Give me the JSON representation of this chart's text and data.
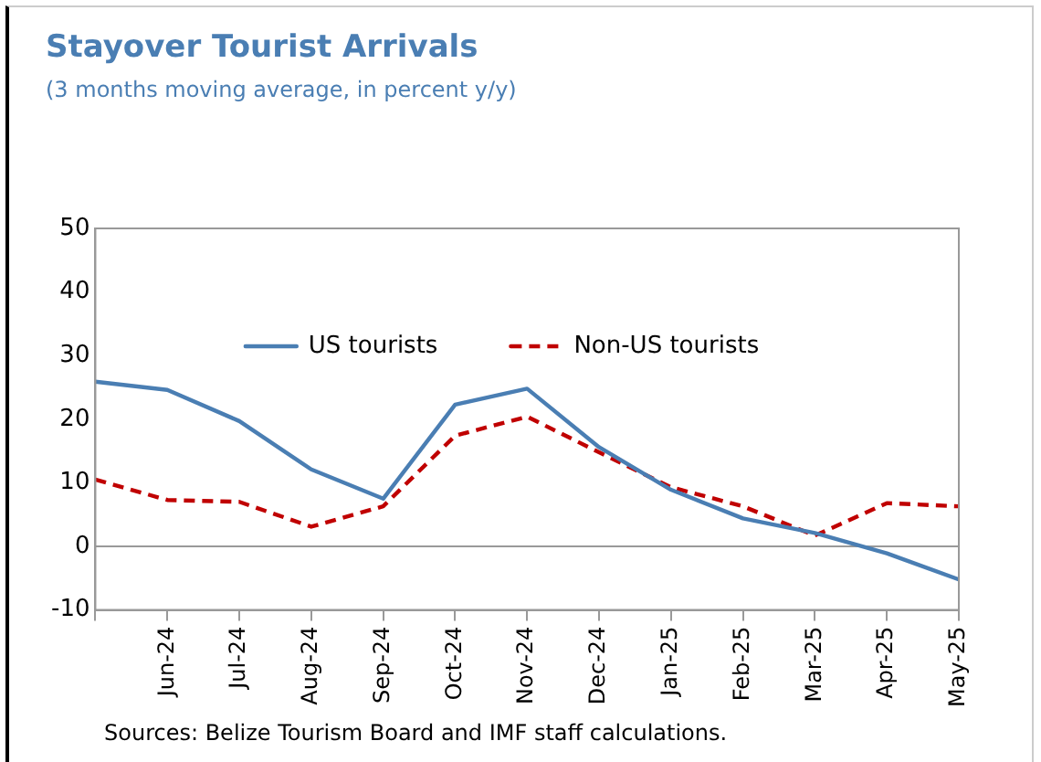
{
  "chart_data": {
    "type": "line",
    "title": "Stayover Tourist Arrivals",
    "subtitle": "(3 months moving average, in percent y/y)",
    "categories": [
      null,
      "Jun-24",
      "Jul-24",
      "Aug-24",
      "Sep-24",
      "Oct-24",
      "Nov-24",
      "Dec-24",
      "Jan-25",
      "Feb-25",
      "Mar-25",
      "Apr-25",
      "May-25"
    ],
    "series": [
      {
        "name": "US tourists",
        "color": "#4a7eb3",
        "line_style": "solid",
        "values": [
          25.9,
          24.6,
          19.7,
          12.1,
          7.5,
          22.3,
          24.8,
          15.6,
          8.9,
          4.4,
          2.1,
          -1.1,
          -5.2
        ]
      },
      {
        "name": "Non-US tourists",
        "color": "#c00000",
        "line_style": "dashed",
        "values": [
          10.5,
          7.3,
          7.0,
          3.1,
          6.3,
          17.4,
          20.4,
          14.8,
          9.3,
          6.3,
          1.7,
          6.8,
          6.3
        ]
      }
    ],
    "ylim": [
      -10,
      50
    ],
    "yticks": [
      -10,
      0,
      10,
      20,
      30,
      40,
      50
    ],
    "legend": "top",
    "marker": "none",
    "annotations": [
      "Sources: Belize Tourism Board and IMF staff calculations."
    ]
  }
}
